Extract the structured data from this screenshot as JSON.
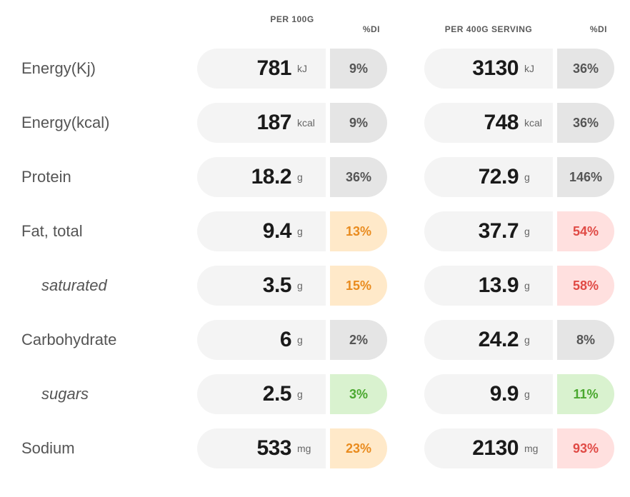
{
  "headers": {
    "per100g": "PER 100G",
    "perServing": "PER 400G SERVING",
    "di": "%DI"
  },
  "colors": {
    "gray_bg": "#e5e5e5",
    "gray_text": "#555555",
    "orange_bg": "#ffe9c9",
    "orange_text": "#e98b1e",
    "red_bg": "#ffe0df",
    "red_text": "#e04a45",
    "green_bg": "#d9f2cf",
    "green_text": "#4aa82f",
    "pill_bg": "#f4f4f4",
    "value_text": "#1a1a1a"
  },
  "rows": [
    {
      "label": "Energy(Kj)",
      "sub": false,
      "v100": "781",
      "u100": "kJ",
      "di100": "9%",
      "c100": "gray",
      "v400": "3130",
      "u400": "kJ",
      "di400": "36%",
      "c400": "gray"
    },
    {
      "label": "Energy(kcal)",
      "sub": false,
      "v100": "187",
      "u100": "kcal",
      "di100": "9%",
      "c100": "gray",
      "v400": "748",
      "u400": "kcal",
      "di400": "36%",
      "c400": "gray"
    },
    {
      "label": "Protein",
      "sub": false,
      "v100": "18.2",
      "u100": "g",
      "di100": "36%",
      "c100": "gray",
      "v400": "72.9",
      "u400": "g",
      "di400": "146%",
      "c400": "gray"
    },
    {
      "label": "Fat, total",
      "sub": false,
      "v100": "9.4",
      "u100": "g",
      "di100": "13%",
      "c100": "orange",
      "v400": "37.7",
      "u400": "g",
      "di400": "54%",
      "c400": "red"
    },
    {
      "label": "saturated",
      "sub": true,
      "v100": "3.5",
      "u100": "g",
      "di100": "15%",
      "c100": "orange",
      "v400": "13.9",
      "u400": "g",
      "di400": "58%",
      "c400": "red"
    },
    {
      "label": "Carbohydrate",
      "sub": false,
      "v100": "6",
      "u100": "g",
      "di100": "2%",
      "c100": "gray",
      "v400": "24.2",
      "u400": "g",
      "di400": "8%",
      "c400": "gray"
    },
    {
      "label": "sugars",
      "sub": true,
      "v100": "2.5",
      "u100": "g",
      "di100": "3%",
      "c100": "green",
      "v400": "9.9",
      "u400": "g",
      "di400": "11%",
      "c400": "green"
    },
    {
      "label": "Sodium",
      "sub": false,
      "v100": "533",
      "u100": "mg",
      "di100": "23%",
      "c100": "orange",
      "v400": "2130",
      "u400": "mg",
      "di400": "93%",
      "c400": "red"
    }
  ]
}
